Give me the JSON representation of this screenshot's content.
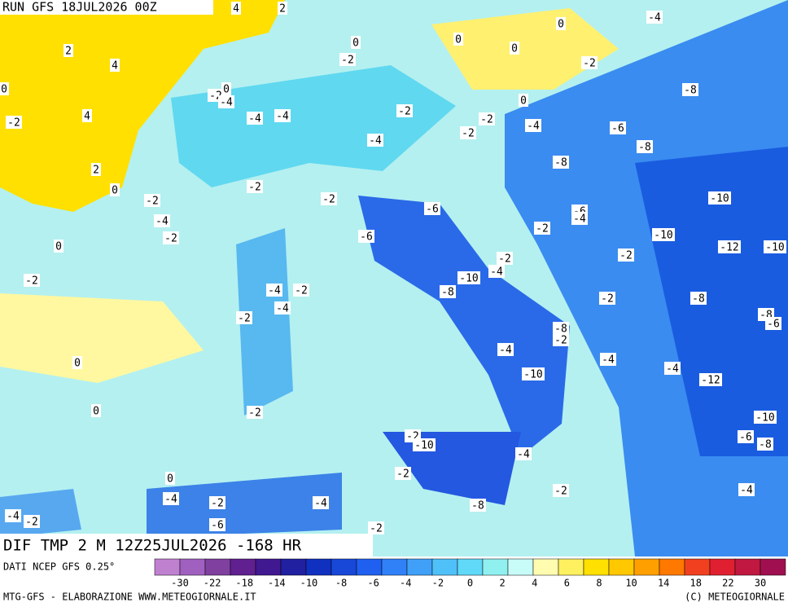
{
  "header": {
    "run": "RUN GFS 18JUL2026 00Z",
    "title": "DIF TMP 2 M 12Z25JUL2026 -168 HR",
    "source": "DATI NCEP GFS 0.25°"
  },
  "map": {
    "contour_labels": [
      "4",
      "2",
      "-4",
      "0",
      "0",
      "0",
      "0",
      "2",
      "4",
      "-2",
      "-2",
      "-8",
      "0",
      "-2",
      "0",
      "-4",
      "0",
      "4",
      "-2",
      "-4",
      "-4",
      "-2",
      "-2",
      "-4",
      "-6",
      "-2",
      "-4",
      "-8",
      "-8",
      "2",
      "-2",
      "0",
      "-2",
      "-2",
      "-10",
      "-6",
      "-4",
      "-6",
      "-4",
      "-2",
      "-2",
      "-10",
      "0",
      "-6",
      "-12",
      "-10",
      "-2",
      "-2",
      "-2",
      "-4",
      "-10",
      "-8",
      "-4",
      "-2",
      "-2",
      "-8",
      "-4",
      "-8",
      "-2",
      "-6",
      "-8",
      "-2",
      "-4",
      "-4",
      "0",
      "-4",
      "-10",
      "-12",
      "0",
      "-2",
      "-10",
      "-6",
      "-2",
      "-10",
      "-8",
      "-4",
      "-2",
      "0",
      "-2",
      "-4",
      "-4",
      "-2",
      "-4",
      "-8",
      "-4",
      "-2",
      "-6",
      "-2"
    ]
  },
  "legend": {
    "labels": [
      -30,
      -22,
      -18,
      -14,
      -10,
      -8,
      -6,
      -4,
      -2,
      0,
      2,
      4,
      6,
      8,
      10,
      14,
      18,
      22,
      30
    ]
  },
  "footer": {
    "left": "MTG-GFS - ELABORAZIONE WWW.METEOGIORNALE.IT",
    "right": "(C) METEOGIORNALE"
  }
}
